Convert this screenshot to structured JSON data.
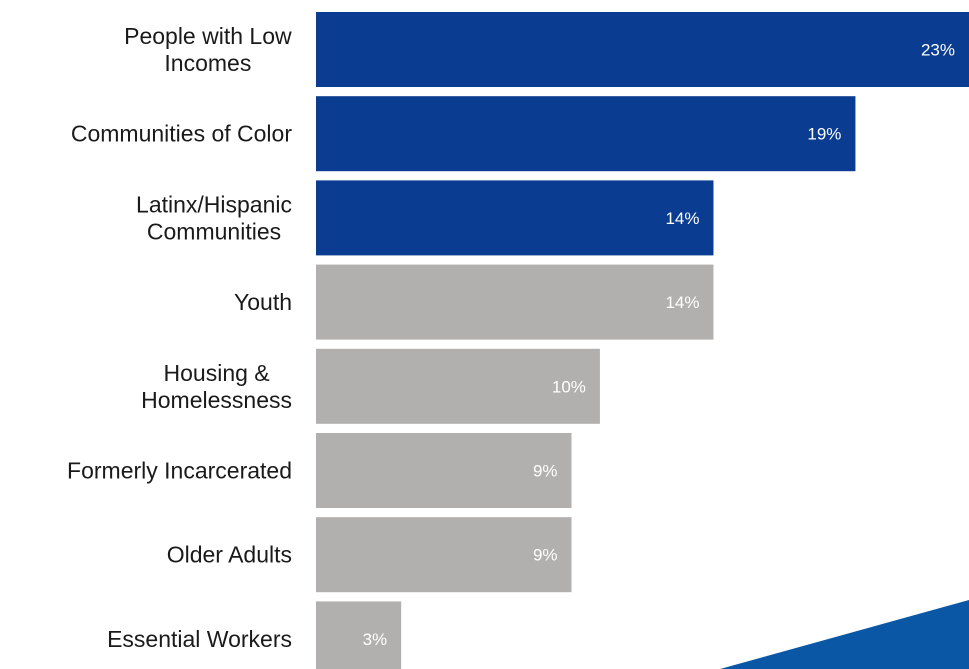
{
  "chart_data": {
    "type": "bar",
    "orientation": "horizontal",
    "categories": [
      [
        "People with Low",
        "Incomes"
      ],
      [
        "Communities of Color"
      ],
      [
        "Latinx/Hispanic",
        "Communities"
      ],
      [
        "Youth"
      ],
      [
        "Housing &",
        "Homelessness"
      ],
      [
        "Formerly Incarcerated"
      ],
      [
        "Older Adults"
      ],
      [
        "Essential Workers"
      ]
    ],
    "values": [
      23,
      19,
      14,
      14,
      10,
      9,
      9,
      3
    ],
    "value_labels": [
      "23%",
      "19%",
      "14%",
      "14%",
      "10%",
      "9%",
      "9%",
      "3%"
    ],
    "highlighted": [
      true,
      true,
      true,
      false,
      false,
      false,
      false,
      false
    ],
    "xlim": [
      0,
      23
    ],
    "title": "",
    "xlabel": "",
    "ylabel": "",
    "grid": false,
    "legend": "none"
  },
  "colors": {
    "highlight_bar": "#0a3d91",
    "default_bar": "#b2b0ae",
    "category_text": "#1a1a1a",
    "value_text": "#ffffff",
    "corner_accent": "#0a57a6",
    "background": "#ffffff"
  }
}
